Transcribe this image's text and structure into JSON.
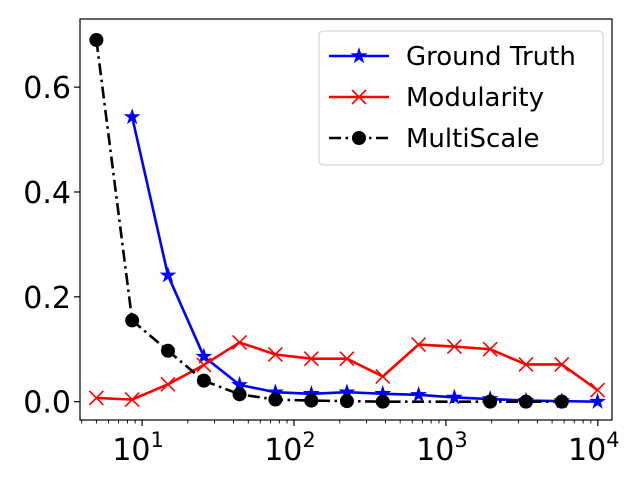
{
  "chart_data": {
    "type": "line",
    "title": "",
    "xlabel": "",
    "ylabel": "",
    "x_scale": "log",
    "xlim": [
      3.9,
      12400
    ],
    "ylim": [
      -0.035,
      0.73
    ],
    "grid": false,
    "legend_position": "top-right",
    "x_ticks": [
      {
        "value": 10,
        "base": "10",
        "exp": "1"
      },
      {
        "value": 100,
        "base": "10",
        "exp": "2"
      },
      {
        "value": 1000,
        "base": "10",
        "exp": "3"
      },
      {
        "value": 10000,
        "base": "10",
        "exp": "4"
      }
    ],
    "y_ticks": [
      {
        "value": 0.0,
        "label": "0.0"
      },
      {
        "value": 0.2,
        "label": "0.2"
      },
      {
        "value": 0.4,
        "label": "0.4"
      },
      {
        "value": 0.6,
        "label": "0.6"
      }
    ],
    "series": [
      {
        "name": "Ground Truth",
        "color": "#0000ff",
        "marker": "star",
        "linestyle": "solid",
        "points": [
          [
            8.6,
            0.543
          ],
          [
            14.8,
            0.241
          ],
          [
            25.5,
            0.086
          ],
          [
            43.8,
            0.032
          ],
          [
            75.4,
            0.018
          ],
          [
            130,
            0.015
          ],
          [
            223,
            0.018
          ],
          [
            384,
            0.015
          ],
          [
            661,
            0.013
          ],
          [
            1137,
            0.008
          ],
          [
            1956,
            0.005
          ],
          [
            3366,
            0.002
          ],
          [
            5792,
            0.001
          ],
          [
            9966,
            0.0
          ]
        ]
      },
      {
        "name": "Modularity",
        "color": "#ff0000",
        "marker": "x",
        "linestyle": "solid",
        "points": [
          [
            5.0,
            0.007
          ],
          [
            8.6,
            0.004
          ],
          [
            14.8,
            0.033
          ],
          [
            25.5,
            0.07
          ],
          [
            43.8,
            0.113
          ],
          [
            75.4,
            0.09
          ],
          [
            130,
            0.082
          ],
          [
            223,
            0.082
          ],
          [
            384,
            0.048
          ],
          [
            661,
            0.109
          ],
          [
            1137,
            0.105
          ],
          [
            1956,
            0.1
          ],
          [
            3366,
            0.071
          ],
          [
            5792,
            0.071
          ],
          [
            9966,
            0.022
          ]
        ]
      },
      {
        "name": "MultiScale",
        "color": "#000000",
        "marker": "circle",
        "linestyle": "dashdot",
        "points": [
          [
            5.0,
            0.69
          ],
          [
            8.6,
            0.155
          ],
          [
            14.8,
            0.097
          ],
          [
            25.5,
            0.04
          ],
          [
            43.8,
            0.014
          ],
          [
            75.4,
            0.004
          ],
          [
            130,
            0.002
          ],
          [
            223,
            0.001
          ],
          [
            384,
            0.0
          ],
          [
            1956,
            0.0
          ],
          [
            3366,
            0.0
          ],
          [
            5792,
            0.0
          ]
        ]
      }
    ]
  }
}
